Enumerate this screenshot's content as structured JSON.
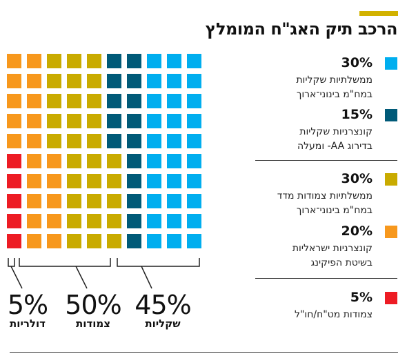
{
  "title": "הרכב תיק האג\"ח המומלץ",
  "colors": {
    "accent": "#d2b200",
    "gov_shekel": "#00aeef",
    "corp_shekel": "#005a78",
    "gov_cpi": "#c9ab00",
    "corp_israeli": "#f7981d",
    "corp_dollar": "#ed1c24"
  },
  "legend": [
    {
      "pct": "30%",
      "line1": "ממשלתיות שקליות",
      "line2": "במח\"מ בינוני־ארוך",
      "color_key": "gov_shekel"
    },
    {
      "pct": "15%",
      "line1": "קונצרניות שקליות",
      "line2": "בדירוג AA- ומעלה",
      "color_key": "corp_shekel"
    },
    {
      "pct": "30%",
      "line1": "ממשלתיות צמודות מדד",
      "line2": "במח\"מ בינוני־ארוך",
      "color_key": "gov_cpi"
    },
    {
      "pct": "20%",
      "line1": "קונצרניות ישראליות",
      "line2": "בשיטת הפיקינג",
      "color_key": "corp_israeli"
    },
    {
      "pct": "5%",
      "line1": "צמודות מט\"ח/חו\"ל",
      "line2": "",
      "color_key": "corp_dollar"
    }
  ],
  "summary": [
    {
      "pct": "5%",
      "label": "דולריות"
    },
    {
      "pct": "50%",
      "label": "צמודות"
    },
    {
      "pct": "45%",
      "label": "שקליות"
    }
  ],
  "chart_data": {
    "type": "waffle",
    "rows": 10,
    "columns": 10,
    "column_categories": [
      "corp_dollar_and_israeli",
      "corp_israeli",
      "gov_cpi",
      "gov_cpi",
      "gov_cpi",
      "corp_shekel",
      "corp_shekel",
      "gov_shekel",
      "gov_shekel",
      "gov_shekel"
    ],
    "series": [
      {
        "key": "corp_dollar",
        "value": 5
      },
      {
        "key": "corp_israeli",
        "value": 20
      },
      {
        "key": "gov_cpi",
        "value": 30
      },
      {
        "key": "corp_shekel",
        "value": 15
      },
      {
        "key": "gov_shekel",
        "value": 30
      }
    ],
    "groups": [
      {
        "label": "דולריות",
        "value": 5
      },
      {
        "label": "צמודות",
        "value": 50
      },
      {
        "label": "שקליות",
        "value": 45
      }
    ]
  }
}
